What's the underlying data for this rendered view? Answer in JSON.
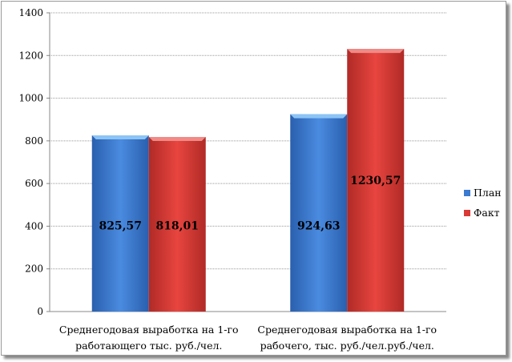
{
  "chart_data": {
    "type": "bar",
    "title": "",
    "xlabel": "",
    "ylabel": "",
    "ylim": [
      0,
      1400
    ],
    "yticks": [
      0,
      200,
      400,
      600,
      800,
      1000,
      1200,
      1400
    ],
    "grid": true,
    "legend_position": "right",
    "categories": [
      [
        "Среднегодовая выработка на 1-го",
        "работающего тыс. руб./чел."
      ],
      [
        "Среднегодовая выработка на 1-го",
        "рабочего, тыс. руб./чел.руб./чел."
      ]
    ],
    "series": [
      {
        "name": "План",
        "color": "#3a7ad0",
        "values": [
          825.57,
          924.63
        ],
        "labels": [
          "825,57",
          "924,63"
        ]
      },
      {
        "name": "Факт",
        "color": "#d93a35",
        "values": [
          818.01,
          1230.57
        ],
        "labels": [
          "818,01",
          "1230,57"
        ]
      }
    ]
  }
}
